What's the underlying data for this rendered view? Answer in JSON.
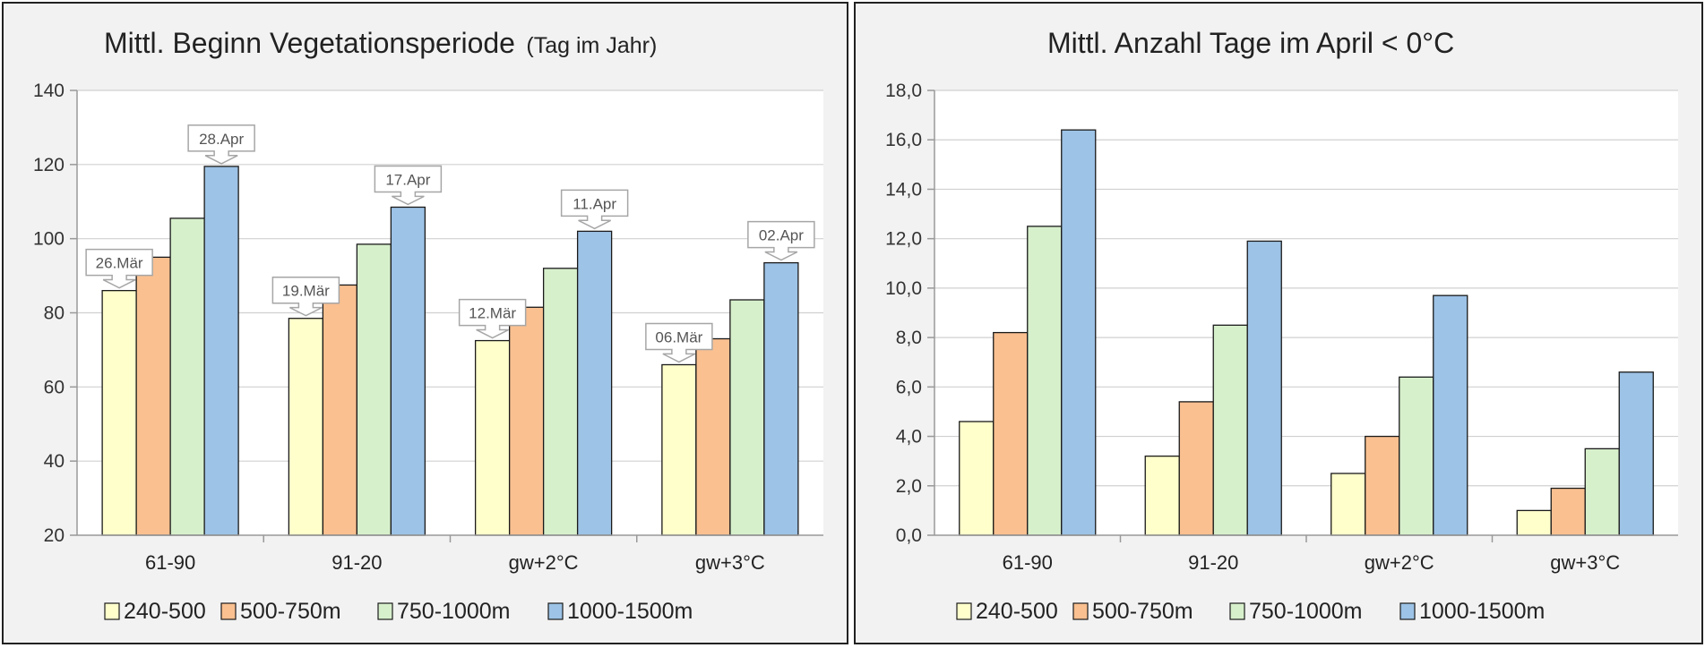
{
  "chart_data": [
    {
      "type": "bar",
      "title": "Mittl. Beginn Vegetationsperiode",
      "subtitle": "(Tag im Jahr)",
      "categories": [
        "61-90",
        "91-20",
        "gw+2°C",
        "gw+3°C"
      ],
      "ylim": [
        20,
        140
      ],
      "yticks": [
        "20",
        "40",
        "60",
        "80",
        "100",
        "120",
        "140"
      ],
      "grid": true,
      "legend_position": "bottom",
      "series": [
        {
          "name": "240-500",
          "color": "#ffffcc",
          "values": [
            86,
            78.5,
            72.5,
            66
          ]
        },
        {
          "name": "500-750m",
          "color": "#fac090",
          "values": [
            95,
            87.5,
            81.5,
            73
          ]
        },
        {
          "name": "750-1000m",
          "color": "#d7f0cc",
          "values": [
            105.5,
            98.5,
            92,
            83.5
          ]
        },
        {
          "name": "1000-1500m",
          "color": "#9dc3e6",
          "values": [
            119.5,
            108.5,
            102,
            93.5
          ]
        }
      ],
      "annotations": [
        {
          "category": 0,
          "series": 0,
          "label": "26.Mär"
        },
        {
          "category": 0,
          "series": 3,
          "label": "28.Apr"
        },
        {
          "category": 1,
          "series": 0,
          "label": "19.Mär"
        },
        {
          "category": 1,
          "series": 3,
          "label": "17.Apr"
        },
        {
          "category": 2,
          "series": 0,
          "label": "12.Mär"
        },
        {
          "category": 2,
          "series": 3,
          "label": "11.Apr"
        },
        {
          "category": 3,
          "series": 0,
          "label": "06.Mär"
        },
        {
          "category": 3,
          "series": 3,
          "label": "02.Apr"
        }
      ]
    },
    {
      "type": "bar",
      "title": "Mittl. Anzahl Tage im April < 0°C",
      "categories": [
        "61-90",
        "91-20",
        "gw+2°C",
        "gw+3°C"
      ],
      "ylim": [
        0,
        18
      ],
      "yticks": [
        "0,0",
        "2,0",
        "4,0",
        "6,0",
        "8,0",
        "10,0",
        "12,0",
        "14,0",
        "16,0",
        "18,0"
      ],
      "grid": true,
      "legend_position": "bottom",
      "series": [
        {
          "name": "240-500",
          "color": "#ffffcc",
          "values": [
            4.6,
            3.2,
            2.5,
            1.0
          ]
        },
        {
          "name": "500-750m",
          "color": "#fac090",
          "values": [
            8.2,
            5.4,
            4.0,
            1.9
          ]
        },
        {
          "name": "750-1000m",
          "color": "#d7f0cc",
          "values": [
            12.5,
            8.5,
            6.4,
            3.5
          ]
        },
        {
          "name": "1000-1500m",
          "color": "#9dc3e6",
          "values": [
            16.4,
            11.9,
            9.7,
            6.6
          ]
        }
      ]
    }
  ]
}
